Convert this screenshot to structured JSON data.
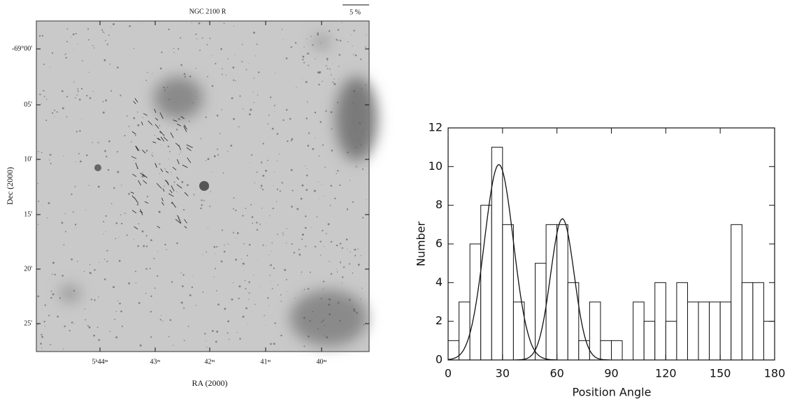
{
  "chart_data": [
    {
      "type": "image",
      "title": "NGC 2100 R",
      "scale_label": "5 %",
      "xlabel": "RA  (2000)",
      "ylabel": "Dec  (2000)",
      "xtick_labels": [
        "5ʰ44ᵐ",
        "43ᵐ",
        "42ᵐ",
        "41ᵐ",
        "40ᵐ"
      ],
      "ytick_labels": [
        "-69°00'",
        "05'",
        "10'",
        "15'",
        "20'",
        "25'"
      ]
    },
    {
      "type": "histogram",
      "xlabel": "Position Angle",
      "ylabel": "Number",
      "bins": [
        0,
        6,
        12,
        18,
        24,
        30,
        36,
        42,
        48,
        54,
        60,
        66,
        72,
        78,
        84,
        90,
        96,
        102,
        108,
        114,
        120,
        126,
        132,
        138,
        144,
        150,
        156,
        162,
        168,
        174,
        180
      ],
      "values": [
        1,
        3,
        6,
        8,
        11,
        7,
        3,
        0,
        5,
        7,
        7,
        4,
        1,
        3,
        1,
        1,
        0,
        3,
        2,
        4,
        2,
        4,
        3,
        3,
        3,
        3,
        7,
        4,
        4,
        2
      ],
      "color": "#ffffff",
      "fits": [
        {
          "center": 28,
          "amplitude": 10.1,
          "sigma": 8
        },
        {
          "center": 63,
          "amplitude": 7.3,
          "sigma": 6.5
        }
      ],
      "xlim": [
        0,
        180
      ],
      "ylim": [
        0,
        12
      ],
      "xticks": [
        0,
        30,
        60,
        90,
        120,
        150,
        180
      ],
      "yticks": [
        0,
        2,
        4,
        6,
        8,
        10,
        12
      ]
    }
  ]
}
